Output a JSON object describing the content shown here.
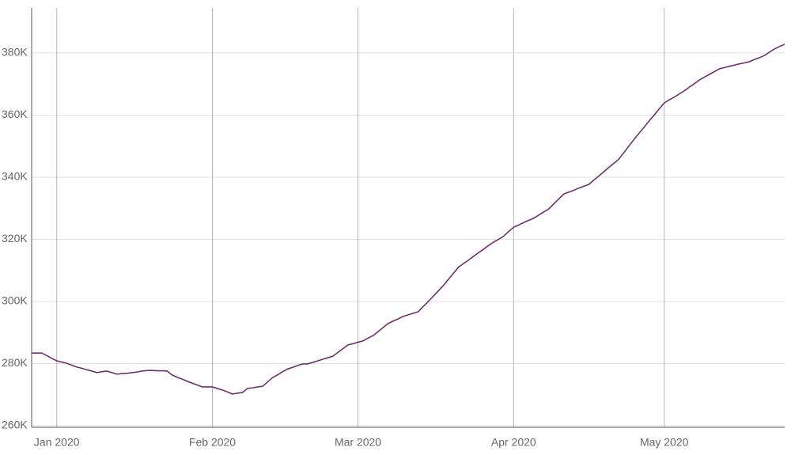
{
  "chart_data": {
    "type": "line",
    "categories": [
      null,
      null,
      null,
      null,
      null,
      "Jan 2020",
      null,
      null,
      null,
      null,
      null,
      null,
      null,
      null,
      null,
      null,
      null,
      null,
      null,
      null,
      null,
      null,
      null,
      null,
      null,
      null,
      null,
      null,
      null,
      null,
      null,
      null,
      null,
      null,
      null,
      null,
      "Feb 2020",
      null,
      null,
      null,
      null,
      null,
      null,
      null,
      null,
      null,
      null,
      null,
      null,
      null,
      null,
      null,
      null,
      null,
      null,
      null,
      null,
      null,
      null,
      null,
      null,
      null,
      null,
      null,
      null,
      "Mar 2020",
      null,
      null,
      null,
      null,
      null,
      null,
      null,
      null,
      null,
      null,
      null,
      null,
      null,
      null,
      null,
      null,
      null,
      null,
      null,
      null,
      null,
      null,
      null,
      null,
      null,
      null,
      null,
      null,
      null,
      null,
      "Apr 2020",
      null,
      null,
      null,
      null,
      null,
      null,
      null,
      null,
      null,
      null,
      null,
      null,
      null,
      null,
      null,
      null,
      null,
      null,
      null,
      null,
      null,
      null,
      null,
      null,
      null,
      null,
      null,
      null,
      null,
      "May 2020",
      null,
      null,
      null,
      null,
      null,
      null,
      null,
      null,
      null,
      null,
      null,
      null,
      null,
      null,
      null,
      null,
      null,
      null,
      null,
      null,
      null,
      null,
      null,
      null
    ],
    "series": [
      {
        "color": "#6e2f6f",
        "values": [
          283400,
          283400,
          283400,
          282600,
          281700,
          280900,
          280500,
          280100,
          279500,
          278900,
          278500,
          278000,
          277600,
          277100,
          277400,
          277600,
          277100,
          276600,
          276800,
          276900,
          277100,
          277300,
          277600,
          277800,
          277800,
          277700,
          277700,
          277600,
          276300,
          275600,
          275000,
          274300,
          273700,
          273100,
          272500,
          272500,
          272500,
          272000,
          271500,
          270900,
          270200,
          270500,
          270700,
          272000,
          272200,
          272500,
          272700,
          274100,
          275500,
          276400,
          277400,
          278300,
          278800,
          279400,
          279900,
          279900,
          280400,
          280900,
          281400,
          281900,
          282400,
          283600,
          284800,
          286000,
          286400,
          286900,
          287300,
          288200,
          289000,
          290300,
          291600,
          292900,
          293700,
          294400,
          295200,
          295700,
          296200,
          296700,
          298400,
          300000,
          301700,
          303400,
          305100,
          307100,
          309000,
          311000,
          312200,
          313300,
          314500,
          315700,
          316800,
          318000,
          319100,
          320000,
          321000,
          322500,
          323900,
          324600,
          325400,
          326100,
          326800,
          327800,
          328800,
          329800,
          331400,
          333000,
          334600,
          335200,
          335800,
          336500,
          337100,
          337700,
          339100,
          340400,
          341800,
          343200,
          344500,
          345900,
          348000,
          350100,
          352200,
          354200,
          356100,
          358100,
          360000,
          362000,
          363900,
          364900,
          365800,
          366800,
          367800,
          369000,
          370100,
          371300,
          372200,
          373100,
          374000,
          374900,
          375300,
          375700,
          376100,
          376500,
          376800,
          377200,
          377900,
          378500,
          379200,
          380300,
          381300,
          382100,
          382800
        ]
      }
    ],
    "ylim": [
      259500,
      394500
    ],
    "yticks": [
      {
        "value": 260000,
        "label": "260K"
      },
      {
        "value": 280000,
        "label": "280K"
      },
      {
        "value": 300000,
        "label": "300K"
      },
      {
        "value": 320000,
        "label": "320K"
      },
      {
        "value": 340000,
        "label": "340K"
      },
      {
        "value": 360000,
        "label": "360K"
      },
      {
        "value": 380000,
        "label": "380K"
      }
    ],
    "grid": true
  }
}
